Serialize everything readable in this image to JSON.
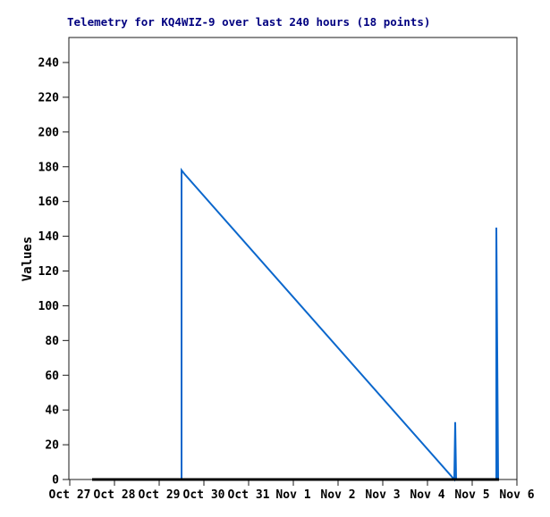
{
  "window": {
    "background": "#ffffff"
  },
  "chart_data": {
    "type": "line",
    "title": "Telemetry for KQ4WIZ-9 over last 240 hours (18 points)",
    "title_color": "#000080",
    "ylabel": "Values",
    "xlabel": "",
    "grid": false,
    "legend": "none",
    "frame_color": "#1a1a1a",
    "label_color": "#000000",
    "x_axis": {
      "unit": "days since Oct 27 00:00",
      "tick_labels": [
        "Oct 27",
        "Oct 28",
        "Oct 29",
        "Oct 30",
        "Oct 31",
        "Nov 1",
        "Nov 2",
        "Nov 3",
        "Nov 4",
        "Nov 5",
        "Nov 6"
      ],
      "tick_positions": [
        0,
        1,
        2,
        3,
        4,
        5,
        6,
        7,
        8,
        9,
        10
      ]
    },
    "y_axis": {
      "min": 0,
      "max": 254,
      "tick_step": 20,
      "ticks": [
        0,
        20,
        40,
        60,
        80,
        100,
        120,
        140,
        160,
        180,
        200,
        220,
        240
      ]
    },
    "series": [
      {
        "name": "values",
        "color": "#0b67cc",
        "stroke_width": 2,
        "points": [
          [
            0.5,
            0
          ],
          [
            2.5,
            0
          ],
          [
            2.5,
            178
          ],
          [
            2.56,
            176
          ],
          [
            8.6,
            0
          ],
          [
            8.62,
            33
          ],
          [
            8.64,
            0
          ],
          [
            9.54,
            0
          ],
          [
            9.54,
            145
          ],
          [
            9.58,
            0
          ],
          [
            9.6,
            0
          ]
        ]
      },
      {
        "name": "zero-baseline",
        "color": "#000000",
        "stroke_width": 3,
        "points": [
          [
            0.5,
            0
          ],
          [
            9.6,
            0
          ]
        ]
      }
    ]
  }
}
